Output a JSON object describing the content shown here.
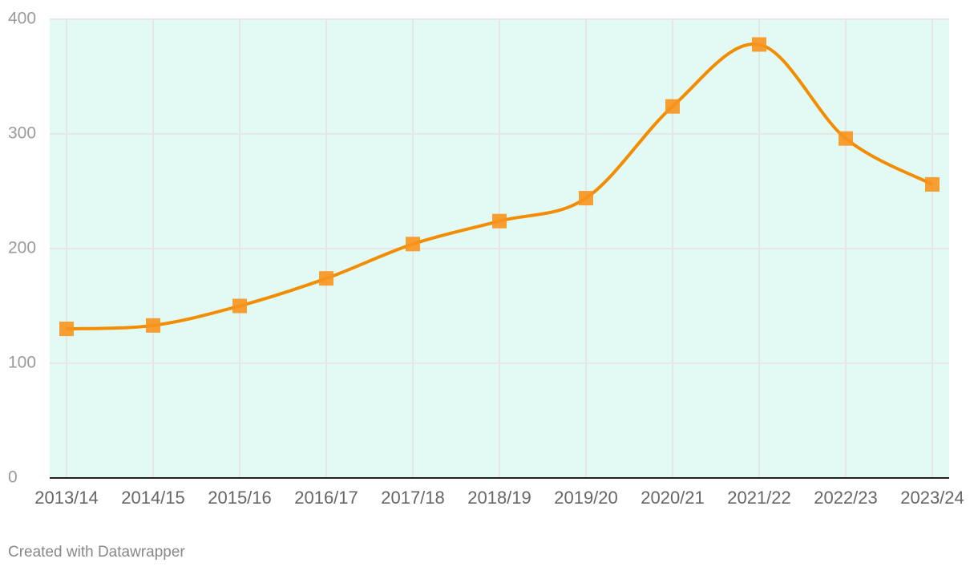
{
  "chart_data": {
    "type": "line",
    "categories": [
      "2013/14",
      "2014/15",
      "2015/16",
      "2016/17",
      "2017/18",
      "2018/19",
      "2019/20",
      "2020/21",
      "2021/22",
      "2022/23",
      "2023/24"
    ],
    "values": [
      130,
      133,
      150,
      174,
      204,
      224,
      244,
      324,
      378,
      296,
      256
    ],
    "color": "#f28c00",
    "marker_color": "#f7941d",
    "background": "#e3f9f3",
    "ylim": [
      0,
      400
    ],
    "yticks": [
      0,
      100,
      200,
      300,
      400
    ],
    "grid": true,
    "source": "Created with Datawrapper"
  }
}
